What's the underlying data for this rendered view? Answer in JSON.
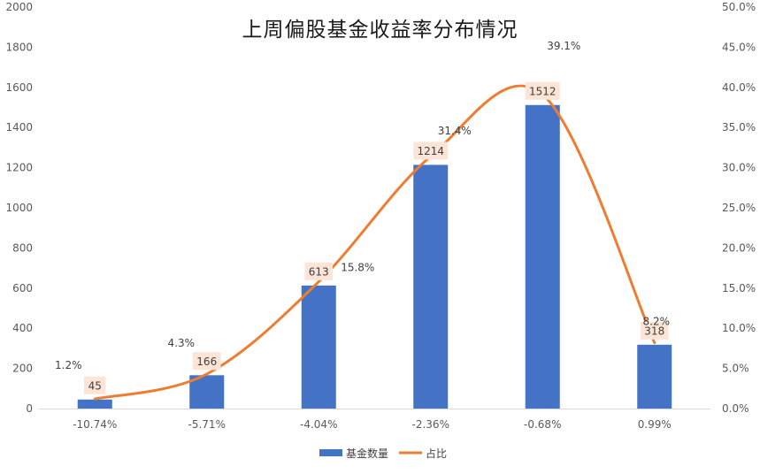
{
  "chart_data": {
    "type": "bar",
    "title": "上周偏股基金收益率分布情况",
    "categories": [
      "-10.74%",
      "-5.71%",
      "-4.04%",
      "-2.36%",
      "-0.68%",
      "0.99%"
    ],
    "series": [
      {
        "name": "基金数量",
        "type": "bar",
        "axis": "left",
        "color": "#4472C4",
        "values": [
          45,
          166,
          613,
          1214,
          1512,
          318
        ],
        "labels": [
          "45",
          "166",
          "613",
          "1214",
          "1512",
          "318"
        ],
        "label_bg": "#FCE4D6"
      },
      {
        "name": "占比",
        "type": "line",
        "smooth": true,
        "axis": "right",
        "color": "#ED7D31",
        "values": [
          1.2,
          4.3,
          15.8,
          31.4,
          39.1,
          8.2
        ],
        "labels": [
          "1.2%",
          "4.3%",
          "15.8%",
          "31.4%",
          "39.1%",
          "8.2%"
        ]
      }
    ],
    "y_left": {
      "min": 0,
      "max": 2000,
      "ticks": [
        "0",
        "200",
        "400",
        "600",
        "800",
        "1000",
        "1200",
        "1400",
        "1600",
        "1800",
        "2000"
      ]
    },
    "y_right": {
      "min": 0,
      "max": 50,
      "ticks": [
        "0.0%",
        "5.0%",
        "10.0%",
        "15.0%",
        "20.0%",
        "25.0%",
        "30.0%",
        "35.0%",
        "40.0%",
        "45.0%",
        "50.0%"
      ]
    },
    "grid": false,
    "legend": "bottom"
  }
}
